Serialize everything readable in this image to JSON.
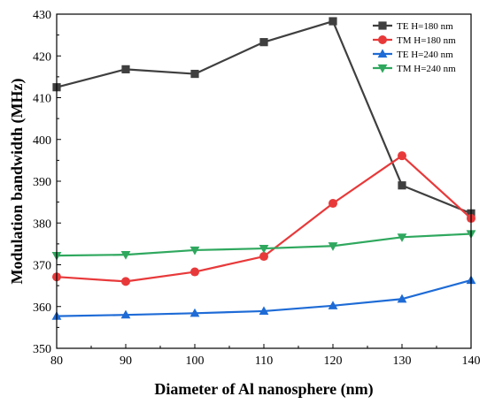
{
  "chart_data": {
    "type": "line",
    "title": "",
    "xlabel": "Diameter of Al nanosphere (nm)",
    "ylabel": "Modulation bandwidth (MHz)",
    "xlim": [
      80,
      140
    ],
    "ylim": [
      350,
      430
    ],
    "xticks": [
      80,
      90,
      100,
      110,
      120,
      130,
      140
    ],
    "yticks": [
      350,
      360,
      370,
      380,
      390,
      400,
      410,
      420,
      430
    ],
    "x": [
      80,
      90,
      100,
      110,
      120,
      130,
      140
    ],
    "grid": false,
    "legend_position": "top-right",
    "series": [
      {
        "name": "TE H=180 nm",
        "color": "#3f3f3f",
        "marker": "square",
        "values": [
          412.5,
          416.8,
          415.7,
          423.3,
          428.3,
          389.0,
          382.3
        ]
      },
      {
        "name": "TM H=180 nm",
        "color": "#e8393a",
        "marker": "circle",
        "values": [
          367.1,
          366.0,
          368.3,
          372.0,
          384.7,
          396.1,
          381.1
        ]
      },
      {
        "name": "TE H=240 nm",
        "color": "#1e6bd6",
        "marker": "triangle-up",
        "values": [
          357.7,
          358.0,
          358.4,
          358.9,
          360.2,
          361.8,
          366.3
        ]
      },
      {
        "name": "TM H=240 nm",
        "color": "#2fa85e",
        "marker": "triangle-down",
        "values": [
          372.2,
          372.4,
          373.5,
          373.9,
          374.5,
          376.6,
          377.4
        ]
      }
    ]
  }
}
